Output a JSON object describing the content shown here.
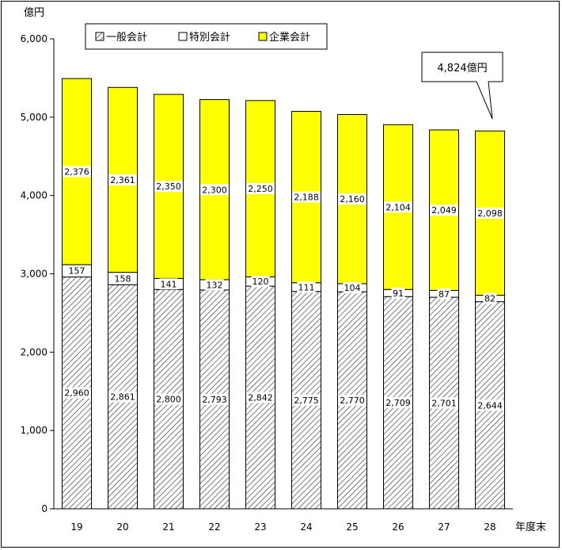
{
  "chart_data": {
    "type": "bar",
    "stacked": true,
    "y_unit": "億円",
    "x_unit": "年度末",
    "categories": [
      "19",
      "20",
      "21",
      "22",
      "23",
      "24",
      "25",
      "26",
      "27",
      "28"
    ],
    "series": [
      {
        "name": "一般会計",
        "values": [
          2960,
          2861,
          2800,
          2793,
          2842,
          2775,
          2770,
          2709,
          2701,
          2644
        ],
        "value_labels": [
          "2,960",
          "2,861",
          "2,800",
          "2,793",
          "2,842",
          "2,775",
          "2,770",
          "2,709",
          "2,701",
          "2,644"
        ],
        "fill": "hatched"
      },
      {
        "name": "特別会計",
        "values": [
          157,
          158,
          141,
          132,
          120,
          111,
          104,
          91,
          87,
          82
        ],
        "value_labels": [
          "157",
          "158",
          "141",
          "132",
          "120",
          "111",
          "104",
          "91",
          "87",
          "82"
        ],
        "fill": "#ffffff"
      },
      {
        "name": "企業会計",
        "values": [
          2376,
          2361,
          2350,
          2300,
          2250,
          2188,
          2160,
          2104,
          2049,
          2098
        ],
        "value_labels": [
          "2,376",
          "2,361",
          "2,350",
          "2,300",
          "2,250",
          "2,188",
          "2,160",
          "2,104",
          "2,049",
          "2,098"
        ],
        "fill": "#ffff00"
      }
    ],
    "ylim": [
      0,
      6000
    ],
    "yticks": [
      0,
      1000,
      2000,
      3000,
      4000,
      5000,
      6000
    ],
    "ytick_labels": [
      "0",
      "1,000",
      "2,000",
      "3,000",
      "4,000",
      "5,000",
      "6,000"
    ],
    "legend_placement": "top-left",
    "grid": false,
    "annotation": {
      "text": "4,824億円",
      "target_category": "28"
    },
    "colors": {
      "yellow": "#ffff00",
      "white": "#ffffff",
      "hatch": "#000000"
    }
  }
}
